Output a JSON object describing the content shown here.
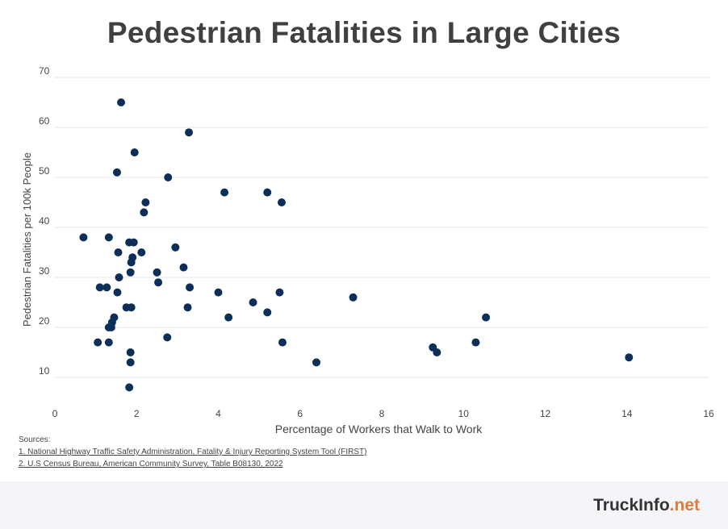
{
  "header": {
    "title": "Pedestrian Fatalities in Large Cities"
  },
  "sources": {
    "heading": "Sources:",
    "items": [
      "1. National Highway Traffic Safety Administration, Fatality & Injury Reporting System Tool (FIRST)",
      "2. U.S Census Bureau, American Community Survey, Table B08130, 2022"
    ]
  },
  "footer": {
    "logo_main": "TruckInfo",
    "logo_accent": ".net"
  },
  "colors": {
    "point": "#0d2e57",
    "grid": "#e6e6e6",
    "text": "#444444",
    "title": "#404040",
    "accent": "#e07b39"
  },
  "chart_data": {
    "type": "scatter",
    "title": "Pedestrian Fatalities in Large Cities",
    "xlabel": "Percentage of Workers that Walk to Work",
    "ylabel": "Pedestrian Fatalities per 100k People",
    "xlim": [
      0,
      16
    ],
    "ylim": [
      5,
      70
    ],
    "xticks": [
      0,
      2,
      4,
      6,
      8,
      10,
      12,
      14,
      16
    ],
    "yticks": [
      10,
      20,
      30,
      40,
      50,
      60,
      70
    ],
    "grid": "horizontal",
    "legend": "none",
    "points": [
      {
        "x": 0.7,
        "y": 38
      },
      {
        "x": 1.05,
        "y": 17
      },
      {
        "x": 1.1,
        "y": 28
      },
      {
        "x": 1.27,
        "y": 28
      },
      {
        "x": 1.32,
        "y": 38
      },
      {
        "x": 1.32,
        "y": 17
      },
      {
        "x": 1.32,
        "y": 20
      },
      {
        "x": 1.38,
        "y": 20
      },
      {
        "x": 1.4,
        "y": 21
      },
      {
        "x": 1.45,
        "y": 22
      },
      {
        "x": 1.52,
        "y": 51
      },
      {
        "x": 1.53,
        "y": 27
      },
      {
        "x": 1.55,
        "y": 35
      },
      {
        "x": 1.57,
        "y": 30
      },
      {
        "x": 1.62,
        "y": 65
      },
      {
        "x": 1.75,
        "y": 24
      },
      {
        "x": 1.82,
        "y": 37
      },
      {
        "x": 1.82,
        "y": 8
      },
      {
        "x": 1.85,
        "y": 31
      },
      {
        "x": 1.85,
        "y": 15
      },
      {
        "x": 1.85,
        "y": 13
      },
      {
        "x": 1.87,
        "y": 24
      },
      {
        "x": 1.87,
        "y": 33
      },
      {
        "x": 1.9,
        "y": 34
      },
      {
        "x": 1.93,
        "y": 37
      },
      {
        "x": 1.95,
        "y": 55
      },
      {
        "x": 2.12,
        "y": 35
      },
      {
        "x": 2.18,
        "y": 43
      },
      {
        "x": 2.22,
        "y": 45
      },
      {
        "x": 2.5,
        "y": 31
      },
      {
        "x": 2.53,
        "y": 29
      },
      {
        "x": 2.75,
        "y": 18
      },
      {
        "x": 2.77,
        "y": 50
      },
      {
        "x": 2.95,
        "y": 36
      },
      {
        "x": 3.15,
        "y": 32
      },
      {
        "x": 3.25,
        "y": 24
      },
      {
        "x": 3.28,
        "y": 59
      },
      {
        "x": 3.3,
        "y": 28
      },
      {
        "x": 4.0,
        "y": 27
      },
      {
        "x": 4.15,
        "y": 47
      },
      {
        "x": 4.25,
        "y": 22
      },
      {
        "x": 4.85,
        "y": 25
      },
      {
        "x": 5.2,
        "y": 23
      },
      {
        "x": 5.2,
        "y": 47
      },
      {
        "x": 5.5,
        "y": 27
      },
      {
        "x": 5.55,
        "y": 45
      },
      {
        "x": 5.57,
        "y": 17
      },
      {
        "x": 6.4,
        "y": 13
      },
      {
        "x": 7.3,
        "y": 26
      },
      {
        "x": 9.25,
        "y": 16
      },
      {
        "x": 9.35,
        "y": 15
      },
      {
        "x": 10.3,
        "y": 17
      },
      {
        "x": 10.55,
        "y": 22
      },
      {
        "x": 14.05,
        "y": 14
      }
    ]
  }
}
